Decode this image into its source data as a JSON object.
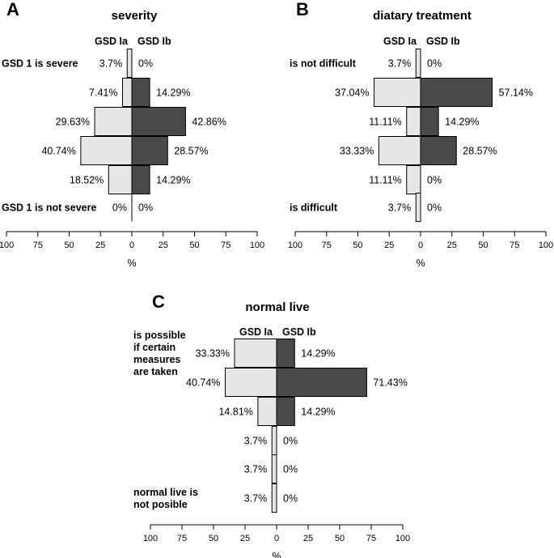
{
  "colors": {
    "left_bar": "#e6e6e6",
    "right_bar": "#4a4a4a",
    "bar_stroke": "#000000"
  },
  "chart_data": [
    {
      "type": "bar",
      "orientation": "diverging-horizontal",
      "panel": "A",
      "title": "severity",
      "series": [
        {
          "name": "GSD Ia",
          "values": [
            3.7,
            7.41,
            29.63,
            40.74,
            18.52,
            0
          ],
          "labels": [
            "3.7%",
            "7.41%",
            "29.63%",
            "40.74%",
            "18.52%",
            "0%"
          ]
        },
        {
          "name": "GSD Ib",
          "values": [
            0,
            14.29,
            42.86,
            28.57,
            14.29,
            0
          ],
          "labels": [
            "0%",
            "14.29%",
            "42.86%",
            "28.57%",
            "14.29%",
            "0%"
          ]
        }
      ],
      "category_labels": [
        {
          "row": 0,
          "lines": [
            "GSD 1 is severe"
          ]
        },
        {
          "row": 5,
          "lines": [
            "GSD 1 is not severe"
          ]
        }
      ],
      "xlim": [
        -100,
        100
      ],
      "ticks": [
        "100",
        "75",
        "50",
        "25",
        "0",
        "25",
        "50",
        "75",
        "100"
      ],
      "xlabel": "%"
    },
    {
      "type": "bar",
      "orientation": "diverging-horizontal",
      "panel": "B",
      "title": "diatary treatment",
      "series": [
        {
          "name": "GSD Ia",
          "values": [
            3.7,
            37.04,
            11.11,
            33.33,
            11.11,
            3.7
          ],
          "labels": [
            "3.7%",
            "37.04%",
            "11.11%",
            "33.33%",
            "11.11%",
            "3.7%"
          ]
        },
        {
          "name": "GSD Ib",
          "values": [
            0,
            57.14,
            14.29,
            28.57,
            0,
            0
          ],
          "labels": [
            "0%",
            "57.14%",
            "14.29%",
            "28.57%",
            "0%",
            "0%"
          ]
        }
      ],
      "category_labels": [
        {
          "row": 0,
          "lines": [
            "is not difficult"
          ]
        },
        {
          "row": 5,
          "lines": [
            "is difficult"
          ]
        }
      ],
      "xlim": [
        -100,
        100
      ],
      "ticks": [
        "100",
        "75",
        "50",
        "25",
        "0",
        "25",
        "50",
        "75",
        "100"
      ],
      "xlabel": "%"
    },
    {
      "type": "bar",
      "orientation": "diverging-horizontal",
      "panel": "C",
      "title": "normal live",
      "series": [
        {
          "name": "GSD Ia",
          "values": [
            33.33,
            40.74,
            14.81,
            3.7,
            3.7,
            3.7
          ],
          "labels": [
            "33.33%",
            "40.74%",
            "14.81%",
            "3.7%",
            "3.7%",
            "3.7%"
          ]
        },
        {
          "name": "GSD Ib",
          "values": [
            14.29,
            71.43,
            14.29,
            0,
            0,
            0
          ],
          "labels": [
            "14.29%",
            "71.43%",
            "14.29%",
            "0%",
            "0%",
            "0%"
          ]
        }
      ],
      "category_labels": [
        {
          "row": 0,
          "lines": [
            "is possible",
            "if certain",
            "measures",
            "are taken"
          ]
        },
        {
          "row": 5,
          "lines": [
            "normal live is",
            "not posible"
          ]
        }
      ],
      "xlim": [
        -100,
        100
      ],
      "ticks": [
        "100",
        "75",
        "50",
        "25",
        "0",
        "25",
        "50",
        "75",
        "100"
      ],
      "xlabel": "%"
    }
  ]
}
